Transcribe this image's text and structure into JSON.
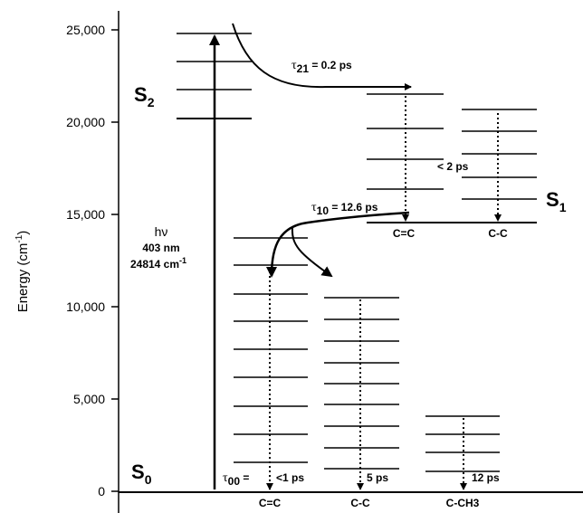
{
  "axis": {
    "ylabel": "Energy (cm",
    "ylabel_sup": "-1",
    "ylabel_close": ")",
    "ticks": [
      "0",
      "5,000",
      "10,000",
      "15,000",
      "20,000",
      "25,000"
    ]
  },
  "states": {
    "s0": {
      "letter": "S",
      "sub": "0"
    },
    "s1": {
      "letter": "S",
      "sub": "1"
    },
    "s2": {
      "letter": "S",
      "sub": "2"
    }
  },
  "excitation": {
    "hv": "hν",
    "wavelength": "403 nm",
    "energy": "24814 cm",
    "energy_sup": "-1"
  },
  "tau21": {
    "symbol": "τ",
    "sub": "21",
    "value": " = 0.2 ps"
  },
  "tau10": {
    "symbol": "τ",
    "sub": "10",
    "value": " = 12.6 ps"
  },
  "tau00": {
    "symbol": "τ",
    "sub": "00",
    "value": " ="
  },
  "times": {
    "s1_cc": "< 2 ps",
    "s0_cc_double": "<1 ps",
    "s0_cc_single": "5 ps",
    "s0_cch3": "12 ps"
  },
  "bonds": {
    "s1_double": "C=C",
    "s1_single": "C-C",
    "s0_double": "C=C",
    "s0_single": "C-C",
    "s0_methyl": "C-CH3"
  }
}
